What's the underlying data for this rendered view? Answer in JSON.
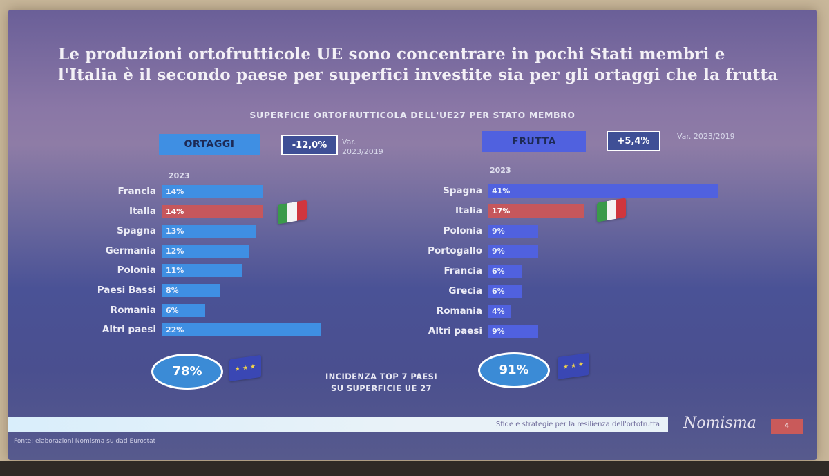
{
  "title_line1": "Le produzioni ortofrutticole UE sono concentrare in pochi Stati membri e",
  "title_line2": "l'Italia è il secondo paese per superfici investite sia per gli ortaggi che la frutta",
  "chart_subtitle": "SUPERFICIE ORTOFRUTTICOLA DELL'UE27 PER STATO MEMBRO",
  "colors": {
    "blue_bar": "#3f8fe3",
    "purple_bar": "#5061df",
    "italy_bar": "#c6575c",
    "ellipse": "#3b8bd6"
  },
  "chart_data": [
    {
      "type": "bar",
      "orientation": "horizontal",
      "title": "ORTAGGI",
      "variation": "-12,0%",
      "variation_label": "Var. 2023/2019",
      "year": "2023",
      "categories": [
        "Francia",
        "Italia",
        "Spagna",
        "Germania",
        "Polonia",
        "Paesi Bassi",
        "Romania",
        "Altri paesi"
      ],
      "values": [
        14,
        14,
        13,
        12,
        11,
        8,
        6,
        22
      ],
      "value_labels": [
        "14%",
        "14%",
        "13%",
        "12%",
        "11%",
        "8%",
        "6%",
        "22%"
      ],
      "highlight": "Italia",
      "incidence_top7": "78%"
    },
    {
      "type": "bar",
      "orientation": "horizontal",
      "title": "FRUTTA",
      "variation": "+5,4%",
      "variation_label": "Var. 2023/2019",
      "year": "2023",
      "categories": [
        "Spagna",
        "Italia",
        "Polonia",
        "Portogallo",
        "Francia",
        "Grecia",
        "Romania",
        "Altri paesi"
      ],
      "values": [
        41,
        17,
        9,
        9,
        6,
        6,
        4,
        9
      ],
      "value_labels": [
        "41%",
        "17%",
        "9%",
        "9%",
        "6%",
        "6%",
        "4%",
        "9%"
      ],
      "highlight": "Italia",
      "incidence_top7": "91%"
    }
  ],
  "incidence_line1": "INCIDENZA TOP 7 PAESI",
  "incidence_line2": "SU SUPERFICIE  UE 27",
  "footer_text": "Sfide e strategie per la resilienza dell'ortofrutta",
  "brand": "Nomisma",
  "page_number": "4",
  "source": "Fonte: elaborazioni Nomisma su dati Eurostat",
  "icons": {
    "italy_flag": "italy-flag-icon",
    "eu_flag": "eu-flag-icon"
  }
}
